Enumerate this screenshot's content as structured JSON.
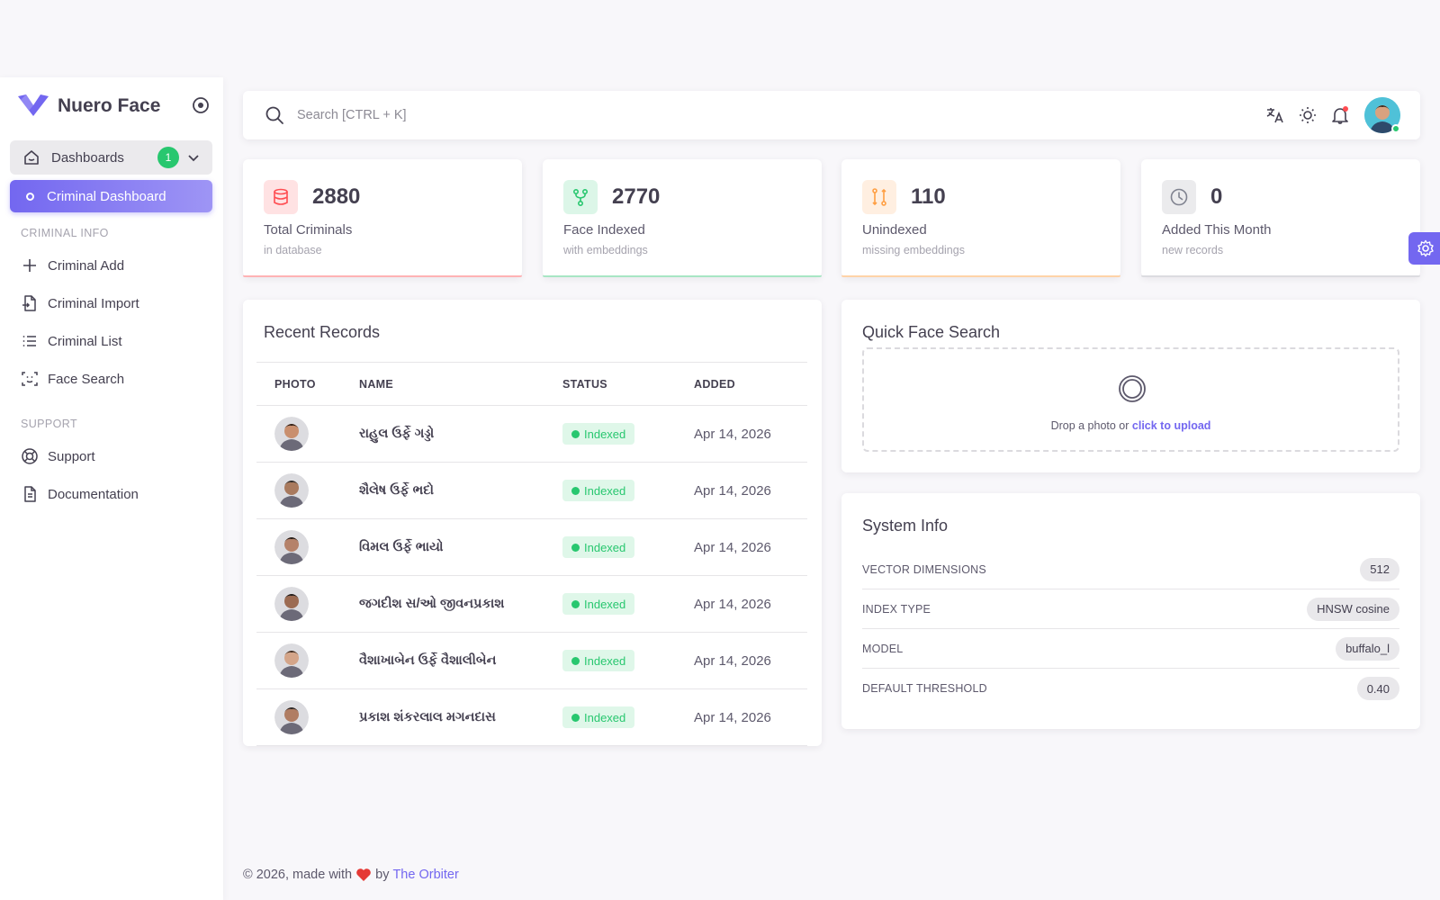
{
  "brand": {
    "name": "Nuero Face"
  },
  "sidebar": {
    "group": {
      "label": "Dashboards",
      "badge": "1"
    },
    "active_item": {
      "label": "Criminal Dashboard"
    },
    "sections": [
      {
        "title": "CRIMINAL INFO",
        "items": [
          {
            "label": "Criminal Add",
            "icon": "plus-icon"
          },
          {
            "label": "Criminal Import",
            "icon": "file-import-icon"
          },
          {
            "label": "Criminal List",
            "icon": "list-icon"
          },
          {
            "label": "Face Search",
            "icon": "face-scan-icon"
          }
        ]
      },
      {
        "title": "SUPPORT",
        "items": [
          {
            "label": "Support",
            "icon": "lifebuoy-icon"
          },
          {
            "label": "Documentation",
            "icon": "document-icon"
          }
        ]
      }
    ]
  },
  "topbar": {
    "search_placeholder": "Search [CTRL + K]",
    "icons": [
      "translate-icon",
      "sun-icon",
      "bell-icon"
    ]
  },
  "stats": [
    {
      "value": "2880",
      "label": "Total Criminals",
      "sub": "in database",
      "icon": "database-icon",
      "color": "#ff4c51",
      "bg": "#ffe2e3"
    },
    {
      "value": "2770",
      "label": "Face Indexed",
      "sub": "with embeddings",
      "icon": "git-fork-icon",
      "color": "#28c76f",
      "bg": "#dcf6e8"
    },
    {
      "value": "110",
      "label": "Unindexed",
      "sub": "missing embeddings",
      "icon": "git-compare-icon",
      "color": "#ff9f43",
      "bg": "#ffefe1"
    },
    {
      "value": "0",
      "label": "Added This Month",
      "sub": "new records",
      "icon": "clock-icon",
      "color": "#808390",
      "bg": "#ebebed"
    }
  ],
  "records": {
    "title": "Recent Records",
    "columns": [
      "PHOTO",
      "NAME",
      "STATUS",
      "ADDED"
    ],
    "rows": [
      {
        "name": "રાહુલ ઉર્ફે ગડ્ડો",
        "status": "Indexed",
        "added": "Apr 14, 2026"
      },
      {
        "name": "શૈલેષ ઉર્ફે ભદો",
        "status": "Indexed",
        "added": "Apr 14, 2026"
      },
      {
        "name": "વિમલ ઉર્ફે ભાયો",
        "status": "Indexed",
        "added": "Apr 14, 2026"
      },
      {
        "name": "જગદીશ સ/ઓ જીવનપ્રકાશ",
        "status": "Indexed",
        "added": "Apr 14, 2026"
      },
      {
        "name": "વૈશાખાબેન ઉર્ફે વૈશાલીબેન",
        "status": "Indexed",
        "added": "Apr 14, 2026"
      },
      {
        "name": "પ્રકાશ શંકરલાલ મગનદાસ",
        "status": "Indexed",
        "added": "Apr 14, 2026"
      }
    ]
  },
  "quick_search": {
    "title": "Quick Face Search",
    "drop_text": "Drop a photo or",
    "drop_link": "click to upload"
  },
  "system_info": {
    "title": "System Info",
    "rows": [
      {
        "key": "VECTOR DIMENSIONS",
        "value": "512"
      },
      {
        "key": "INDEX TYPE",
        "value": "HNSW cosine"
      },
      {
        "key": "MODEL",
        "value": "buffalo_l"
      },
      {
        "key": "DEFAULT THRESHOLD",
        "value": "0.40"
      }
    ]
  },
  "footer": {
    "prefix": "© 2026, made with",
    "by": "by",
    "link": "The Orbiter"
  },
  "colors": {
    "primary": "#7367f0",
    "success": "#28c76f"
  }
}
